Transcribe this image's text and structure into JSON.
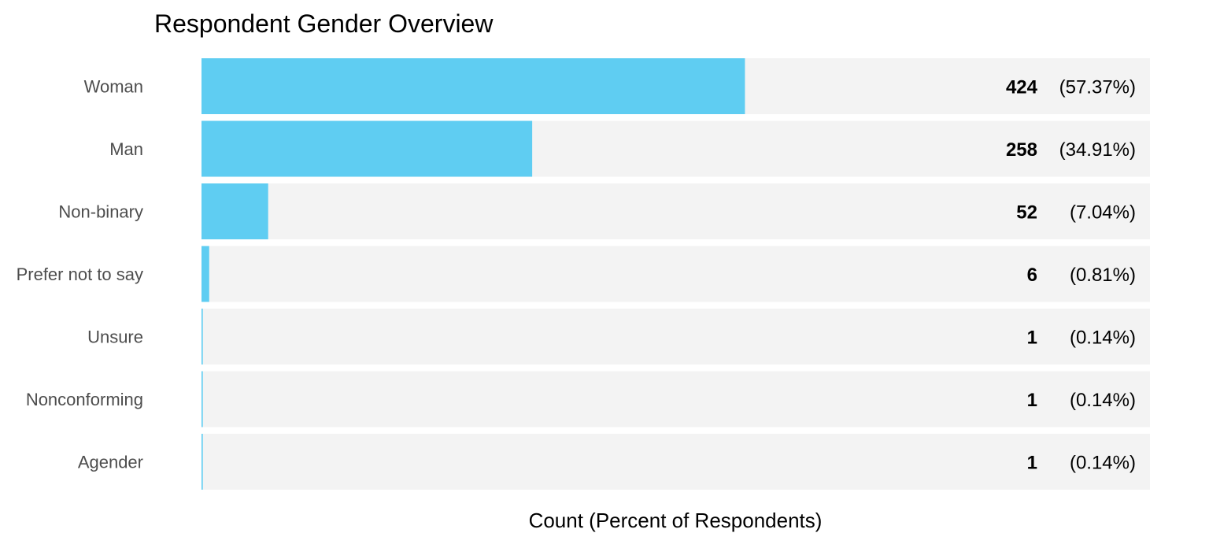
{
  "chart_data": {
    "type": "bar",
    "orientation": "horizontal",
    "title": "Respondent Gender Overview",
    "xlabel": "Count (Percent of Respondents)",
    "ylabel": "",
    "categories": [
      "Woman",
      "Man",
      "Non-binary",
      "Prefer not to say",
      "Unsure",
      "Nonconforming",
      "Agender"
    ],
    "values": [
      424,
      258,
      52,
      6,
      1,
      1,
      1
    ],
    "percent_labels": [
      "(57.37%)",
      "(34.91%)",
      "(7.04%)",
      "(0.81%)",
      "(0.14%)",
      "(0.14%)",
      "(0.14%)"
    ],
    "xlim": [
      0,
      740
    ],
    "grid": false,
    "legend": "none",
    "colors": {
      "bar": "#5fcdf2",
      "track": "#f3f3f3",
      "category_text": "#4d4d4d",
      "value_text": "#000000"
    }
  }
}
